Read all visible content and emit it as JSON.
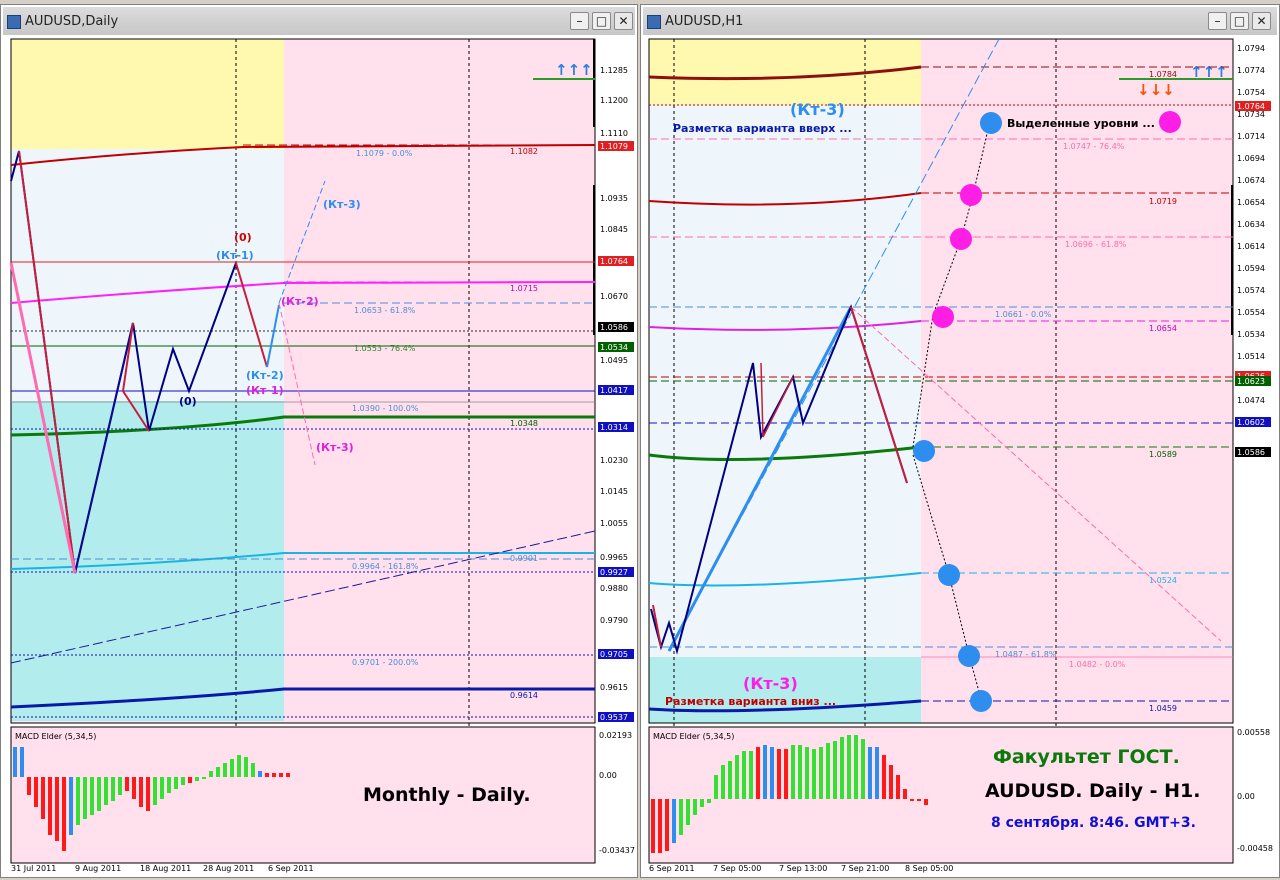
{
  "left": {
    "title": "AUDUSD,Daily",
    "price_labels": [
      "1.1285",
      "1.1200",
      "1.1110",
      "1.0935",
      "1.0845",
      "1.0670",
      "1.0495",
      "1.0230",
      "1.0145",
      "1.0055",
      "0.9965",
      "0.9880",
      "0.9790",
      "0.9615"
    ],
    "highlight_labels": [
      {
        "text": "1.1079",
        "bg": "#e02020",
        "fg": "#ffffff"
      },
      {
        "text": "1.0764",
        "bg": "#e02020",
        "fg": "#ffffff"
      },
      {
        "text": "1.0586",
        "bg": "#000000",
        "fg": "#ffffff"
      },
      {
        "text": "1.0534",
        "bg": "#006000",
        "fg": "#ffffff"
      },
      {
        "text": "1.0417",
        "bg": "#1010c0",
        "fg": "#ffffff"
      },
      {
        "text": "1.0314",
        "bg": "#1010c0",
        "fg": "#ffffff"
      },
      {
        "text": "0.9927",
        "bg": "#1010c0",
        "fg": "#ffffff"
      },
      {
        "text": "0.9705",
        "bg": "#1010c0",
        "fg": "#ffffff"
      },
      {
        "text": "0.9537",
        "bg": "#1010c0",
        "fg": "#ffffff"
      }
    ],
    "level_texts": [
      "1.1079 - 0.0%",
      "1.1082",
      "1.0715",
      "1.0653 - 61.8%",
      "1.0553 - 76.4%",
      "1.0390 - 100.0%",
      "1.0348",
      "0.9901",
      "0.9964 - 161.8%",
      "0.9701 - 200.0%",
      "0.9614"
    ],
    "wave_labels": [
      "(Кт-3)",
      "(0)",
      "(Кт-1)",
      "(Кт-2)",
      "(Кт-2)",
      "(Кт-1)",
      "(0)",
      "(Кт-3)"
    ],
    "arrows_up": "↑↑↑",
    "indicator_name": "MACD Elder (5,34,5)",
    "indicator_scale": [
      "0.02193",
      "0.00",
      "-0.03437"
    ],
    "dates": [
      "31 Jul 2011",
      "9 Aug 2011",
      "18 Aug 2011",
      "28 Aug 2011",
      "6 Sep 2011"
    ],
    "caption": "Monthly - Daily."
  },
  "right": {
    "title": "AUDUSD,H1",
    "price_labels": [
      "1.0794",
      "1.0774",
      "1.0754",
      "1.0734",
      "1.0714",
      "1.0694",
      "1.0674",
      "1.0654",
      "1.0634",
      "1.0614",
      "1.0594",
      "1.0574",
      "1.0554",
      "1.0534",
      "1.0514",
      "1.0494",
      "1.0474",
      "1.0454"
    ],
    "highlight_labels": [
      {
        "text": "1.0764",
        "bg": "#e02020",
        "fg": "#ffffff"
      },
      {
        "text": "1.0626",
        "bg": "#e02020",
        "fg": "#ffffff"
      },
      {
        "text": "1.0623",
        "bg": "#006000",
        "fg": "#ffffff"
      },
      {
        "text": "1.0602",
        "bg": "#1010c0",
        "fg": "#ffffff"
      },
      {
        "text": "1.0586",
        "bg": "#000000",
        "fg": "#ffffff"
      }
    ],
    "level_texts": [
      "1.0784",
      "1.0747 - 76.4%",
      "1.0719",
      "1.0696 - 61.8%",
      "1.0661 - 0.0%",
      "1.0654",
      "1.0589",
      "1.0524",
      "1.0487 - 61.8%",
      "1.0482 - 0.0%",
      "1.0459"
    ],
    "wave_top": "(Кт-3)",
    "note_up": "Разметка варианта вверх ...",
    "note_levels": "Выделенные уровни ...",
    "wave_bottom": "(Кт-3)",
    "note_down": "Разметка варианта вниз ...",
    "arrows_up": "↑↑↑",
    "arrows_down": "↓↓↓",
    "indicator_name": "MACD Elder (5,34,5)",
    "indicator_scale": [
      "0.00558",
      "0.00",
      "-0.00458"
    ],
    "dates": [
      "6 Sep 2011",
      "7 Sep 05:00",
      "7 Sep 13:00",
      "7 Sep 21:00",
      "8 Sep 05:00"
    ],
    "caption1": "Факультет ГОСТ.",
    "caption2": "AUDUSD. Daily - H1.",
    "caption3": "8 сентября. 8:46. GMT+3."
  },
  "colors": {
    "pink": "#ffe0ec",
    "yellow": "#fff9b0",
    "lightblue": "#eef6fb",
    "cyan": "#b2ecec",
    "blue_dot": "#2d8ef0",
    "magenta_dot": "#ff1ee6"
  }
}
